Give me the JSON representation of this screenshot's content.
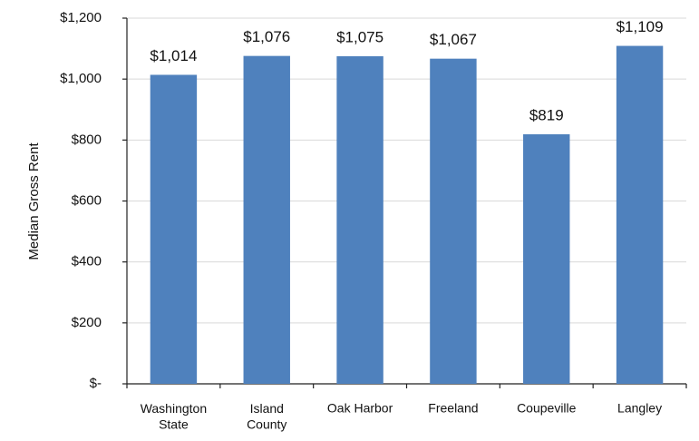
{
  "chart_data": {
    "type": "bar",
    "y_label": "Median Gross Rent",
    "categories": [
      "Washington\nState",
      "Island\nCounty",
      "Oak Harbor",
      "Freeland",
      "Coupeville",
      "Langley"
    ],
    "values": [
      1014,
      1076,
      1075,
      1067,
      819,
      1109
    ],
    "value_labels": [
      "$1,014",
      "$1,076",
      "$1,075",
      "$1,067",
      "$819",
      "$1,109"
    ],
    "color": "#4f81bd",
    "ylim": [
      0,
      1200
    ],
    "yticks": [
      {
        "value": 0,
        "label": "$-"
      },
      {
        "value": 200,
        "label": "$200"
      },
      {
        "value": 400,
        "label": "$400"
      },
      {
        "value": 600,
        "label": "$600"
      },
      {
        "value": 800,
        "label": "$800"
      },
      {
        "value": 1000,
        "label": "$1,000"
      },
      {
        "value": 1200,
        "label": "$1,200"
      }
    ],
    "grid": true
  }
}
